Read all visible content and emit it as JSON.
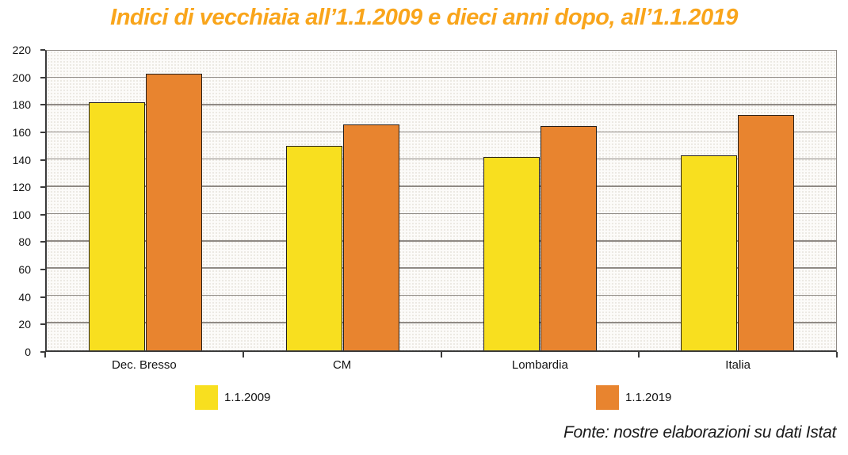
{
  "chart_data": {
    "type": "bar",
    "title": "Indici di vecchiaia all’1.1.2009 e dieci anni dopo, all’1.1.2019",
    "categories": [
      "Dec. Bresso",
      "CM",
      "Lombardia",
      "Italia"
    ],
    "series": [
      {
        "name": "1.1.2009",
        "color": "#F8DF1F",
        "values": [
          182,
          150,
          142,
          143
        ]
      },
      {
        "name": "1.1.2019",
        "color": "#E8842F",
        "values": [
          203,
          166,
          165,
          173
        ]
      }
    ],
    "xlabel": "",
    "ylabel": "",
    "ylim": [
      0,
      220
    ],
    "ytick_step": 20,
    "grid": true,
    "legend_position": "bottom"
  },
  "footer": {
    "source": "Fonte: nostre elaborazioni su dati Istat"
  },
  "colors": {
    "title": "#F9A51B",
    "series_2009": "#F8DF1F",
    "series_2019": "#E8842F",
    "grid": "#8f8a85",
    "axis": "#3b3b3b",
    "bar_border": "#241f1c",
    "text": "#141414"
  }
}
